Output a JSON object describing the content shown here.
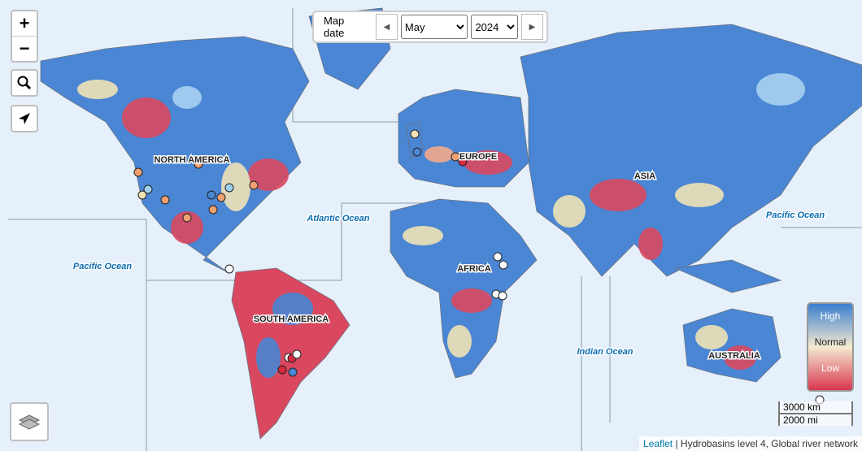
{
  "controls": {
    "zoom_in": "+",
    "zoom_out": "−"
  },
  "date_picker": {
    "label": "Map date",
    "month": "May",
    "year": "2024"
  },
  "labels": {
    "continents": [
      "NORTH AMERICA",
      "SOUTH AMERICA",
      "EUROPE",
      "AFRICA",
      "ASIA",
      "AUSTRALIA"
    ],
    "oceans": [
      "Pacific Ocean",
      "Atlantic Ocean",
      "Indian Ocean",
      "Pacific Ocean"
    ]
  },
  "legend": {
    "high": "High",
    "normal": "Normal",
    "low": "Low"
  },
  "scale": {
    "metric": "3000 km",
    "imperial": "2000 mi"
  },
  "attribution": {
    "link": "Leaflet",
    "text": "| Hydrobasins level 4, Global river network"
  }
}
